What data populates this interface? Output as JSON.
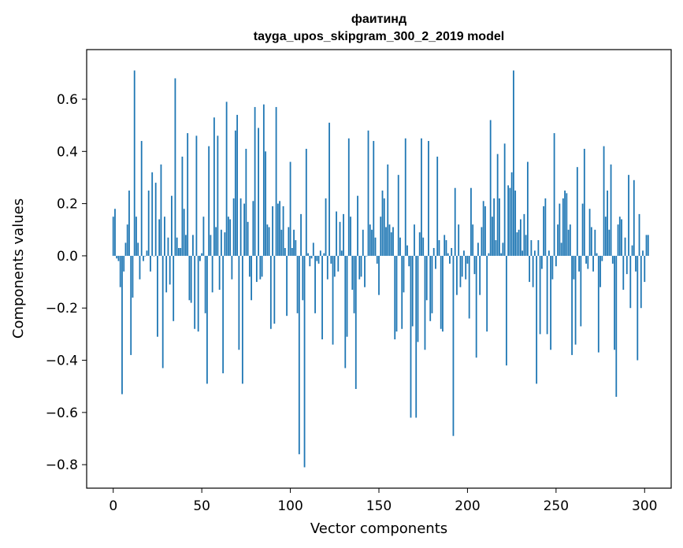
{
  "chart_data": {
    "type": "bar",
    "title": "фаитинд",
    "subtitle": "tayga_upos_skipgram_300_2_2019 model",
    "xlabel": "Vector components",
    "ylabel": "Components values",
    "xlim": [
      -15,
      315
    ],
    "ylim": [
      -0.89,
      0.79
    ],
    "x_ticks": [
      0,
      50,
      100,
      150,
      200,
      250,
      300
    ],
    "x_tick_labels": [
      "0",
      "50",
      "100",
      "150",
      "200",
      "250",
      "300"
    ],
    "y_ticks": [
      -0.8,
      -0.6,
      -0.4,
      -0.2,
      0.0,
      0.2,
      0.4,
      0.6
    ],
    "y_tick_labels": [
      "−0.8",
      "−0.6",
      "−0.4",
      "−0.2",
      "0.0",
      "0.2",
      "0.4",
      "0.6"
    ],
    "grid": false,
    "bar_color": "#1f77b4",
    "series": [
      {
        "values": [
          0.15,
          0.18,
          -0.01,
          -0.02,
          -0.12,
          -0.53,
          -0.06,
          0.05,
          0.12,
          0.25,
          -0.38,
          -0.16,
          0.71,
          0.15,
          0.05,
          -0.09,
          0.44,
          -0.02,
          0.0,
          0.02,
          0.25,
          -0.06,
          0.32,
          0.0,
          0.28,
          -0.31,
          0.14,
          0.35,
          -0.43,
          0.15,
          -0.14,
          0.07,
          -0.11,
          0.23,
          -0.25,
          0.68,
          0.07,
          0.03,
          0.03,
          0.38,
          0.18,
          0.08,
          0.47,
          -0.17,
          -0.18,
          0.08,
          -0.28,
          0.46,
          -0.29,
          -0.02,
          0.01,
          0.15,
          -0.22,
          -0.49,
          0.42,
          0.08,
          -0.14,
          0.53,
          0.11,
          0.46,
          -0.13,
          0.1,
          -0.45,
          0.09,
          0.59,
          0.15,
          0.14,
          -0.09,
          0.22,
          0.48,
          0.54,
          -0.36,
          0.22,
          -0.49,
          0.2,
          0.41,
          0.13,
          -0.08,
          -0.17,
          0.21,
          0.57,
          -0.1,
          0.49,
          -0.09,
          -0.08,
          0.58,
          0.4,
          0.12,
          0.11,
          -0.28,
          0.19,
          -0.26,
          0.57,
          0.2,
          0.21,
          0.1,
          0.19,
          0.03,
          -0.23,
          0.11,
          0.36,
          0.03,
          0.1,
          0.06,
          -0.22,
          -0.76,
          0.16,
          -0.17,
          -0.81,
          0.41,
          0.01,
          -0.04,
          -0.01,
          0.05,
          -0.22,
          -0.02,
          -0.03,
          0.02,
          -0.32,
          0.01,
          0.22,
          -0.09,
          0.51,
          -0.03,
          -0.34,
          -0.08,
          0.17,
          -0.06,
          0.13,
          0.02,
          0.16,
          -0.43,
          -0.31,
          0.45,
          0.15,
          -0.13,
          -0.22,
          -0.51,
          0.23,
          -0.09,
          -0.08,
          0.1,
          -0.12,
          0.0,
          0.48,
          0.12,
          0.1,
          0.44,
          0.07,
          -0.03,
          -0.15,
          0.15,
          0.25,
          0.22,
          0.11,
          0.35,
          0.12,
          0.09,
          0.11,
          -0.32,
          -0.29,
          0.31,
          0.07,
          -0.28,
          -0.14,
          0.45,
          0.04,
          -0.04,
          -0.62,
          -0.27,
          0.12,
          -0.62,
          -0.33,
          0.09,
          0.45,
          0.07,
          -0.36,
          -0.17,
          0.44,
          -0.25,
          -0.22,
          0.03,
          -0.05,
          0.38,
          0.06,
          -0.28,
          -0.29,
          0.08,
          0.06,
          0.01,
          -0.03,
          0.03,
          -0.69,
          0.26,
          -0.15,
          0.12,
          -0.12,
          -0.08,
          0.02,
          -0.09,
          -0.03,
          -0.24,
          0.26,
          0.12,
          -0.07,
          -0.39,
          0.05,
          -0.15,
          0.11,
          0.21,
          0.19,
          -0.29,
          0.01,
          0.52,
          0.15,
          0.22,
          0.06,
          0.39,
          0.22,
          0.01,
          0.05,
          0.43,
          -0.42,
          0.27,
          0.26,
          0.32,
          0.71,
          0.25,
          0.09,
          0.1,
          0.14,
          0.02,
          0.16,
          0.08,
          0.36,
          -0.1,
          0.06,
          -0.12,
          0.02,
          -0.49,
          0.06,
          -0.3,
          -0.05,
          0.19,
          0.22,
          -0.3,
          0.02,
          -0.36,
          -0.09,
          0.47,
          -0.04,
          0.12,
          0.2,
          0.05,
          0.22,
          0.25,
          0.24,
          0.1,
          0.12,
          -0.38,
          -0.09,
          -0.34,
          0.34,
          -0.06,
          -0.27,
          0.2,
          0.41,
          -0.03,
          -0.05,
          0.18,
          0.11,
          -0.06,
          0.1,
          0.01,
          -0.37,
          -0.12,
          -0.02,
          0.42,
          0.15,
          0.25,
          0.1,
          0.35,
          -0.03,
          -0.36,
          -0.54,
          0.12,
          0.15,
          0.14,
          -0.13,
          0.07,
          -0.07,
          0.31,
          -0.2,
          0.04,
          0.29,
          -0.06,
          -0.4,
          0.16,
          -0.2,
          0.02,
          -0.1,
          0.08,
          0.08
        ]
      }
    ]
  }
}
